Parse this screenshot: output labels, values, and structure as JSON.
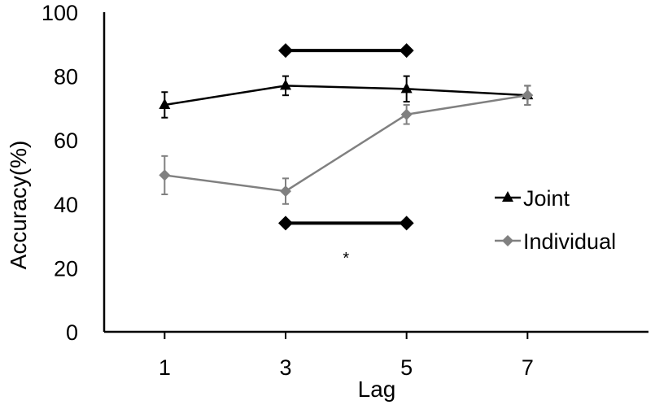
{
  "chart_data": {
    "type": "line",
    "xlabel": "Lag",
    "ylabel": "Accuracy(%)",
    "x": [
      1,
      3,
      5,
      7
    ],
    "xlim": [
      0,
      9
    ],
    "ylim": [
      0,
      100
    ],
    "yticks": [
      0,
      20,
      40,
      60,
      80,
      100
    ],
    "grid": false,
    "legend_position": "right",
    "series": [
      {
        "name": "Joint",
        "marker": "triangle",
        "color": "#000000",
        "values": [
          71,
          77,
          76,
          74
        ],
        "errors": [
          4,
          3,
          4,
          3
        ]
      },
      {
        "name": "Individual",
        "marker": "diamond",
        "color": "#808080",
        "values": [
          49,
          44,
          68,
          74
        ],
        "errors": [
          6,
          4,
          3,
          3
        ]
      }
    ],
    "significance_brackets": [
      {
        "x": [
          3,
          5
        ],
        "y": [
          88,
          88
        ]
      },
      {
        "x": [
          3,
          5
        ],
        "y": [
          34,
          34
        ]
      }
    ],
    "annotations": [
      {
        "text": "*",
        "x": 4,
        "y": 25
      }
    ]
  }
}
